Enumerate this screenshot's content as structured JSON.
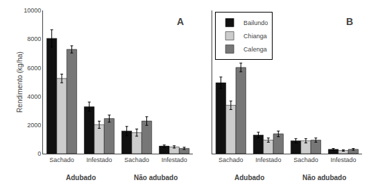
{
  "chart_data": [
    {
      "type": "bar",
      "title": "A",
      "categories": [
        "Sachado",
        "Infestado",
        "Sachado",
        "Infestado"
      ],
      "series": [
        {
          "name": "Bailundo",
          "color": "#111111",
          "values": [
            8050,
            3280,
            1580,
            530
          ],
          "errors": [
            600,
            320,
            320,
            80
          ]
        },
        {
          "name": "Chianga",
          "color": "#cccccc",
          "values": [
            5250,
            2020,
            1470,
            470
          ],
          "errors": [
            300,
            250,
            250,
            80
          ]
        },
        {
          "name": "Calenga",
          "color": "#777777",
          "values": [
            7280,
            2450,
            2280,
            370
          ],
          "errors": [
            250,
            250,
            300,
            80
          ]
        }
      ],
      "ylabel": "Rendimento (kg/ha)",
      "annotations": [
        "Adubado",
        "Não adubado"
      ],
      "ylim": [
        0,
        10000
      ],
      "yticks": [
        0,
        2000,
        4000,
        6000,
        8000,
        10000
      ],
      "grid": false
    },
    {
      "type": "bar",
      "title": "B",
      "categories": [
        "Sachado",
        "Infestado",
        "Sachado",
        "Infestado"
      ],
      "series": [
        {
          "name": "Bailundo",
          "color": "#111111",
          "values": [
            4950,
            1300,
            900,
            300
          ],
          "errors": [
            400,
            200,
            150,
            60
          ]
        },
        {
          "name": "Chianga",
          "color": "#cccccc",
          "values": [
            3380,
            950,
            900,
            220
          ],
          "errors": [
            300,
            150,
            150,
            50
          ]
        },
        {
          "name": "Calenga",
          "color": "#777777",
          "values": [
            6020,
            1380,
            950,
            300
          ],
          "errors": [
            300,
            200,
            150,
            60
          ]
        }
      ],
      "annotations": [
        "Adubado",
        "Não adubado"
      ],
      "ylim": [
        0,
        10000
      ],
      "yticks": [
        0,
        2000,
        4000,
        6000,
        8000,
        10000
      ],
      "tick_labels": "x",
      "legend": "upper left",
      "grid": false
    }
  ]
}
